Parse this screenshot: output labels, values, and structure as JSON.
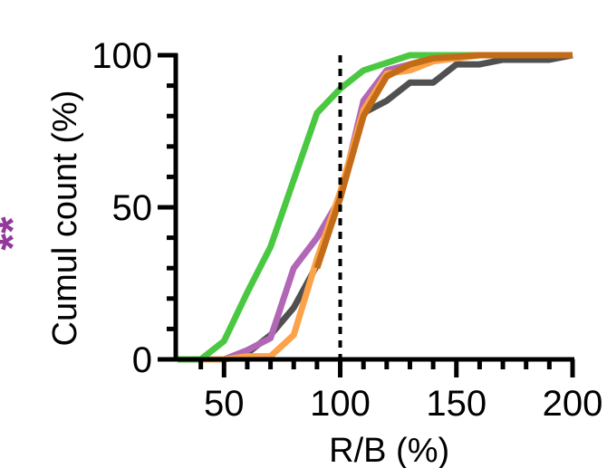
{
  "chart_data": {
    "type": "line",
    "xlabel": "R/B (%)",
    "ylabel": "Cumul count (%)",
    "xlim": [
      30,
      200
    ],
    "ylim": [
      0,
      100
    ],
    "xticks": [
      50,
      100,
      150,
      200
    ],
    "xtick_labels": [
      "50",
      "100",
      "150",
      "200"
    ],
    "yticks": [
      0,
      50,
      100
    ],
    "ytick_labels": [
      "0",
      "50",
      "100"
    ],
    "reference_line_x": 100,
    "significance": {
      "text": "**",
      "color": "#93399a"
    },
    "series": [
      {
        "color": "#505050",
        "x": [
          30,
          40,
          50,
          60,
          70,
          80,
          90,
          100,
          110,
          120,
          130,
          140,
          150,
          160,
          170,
          180,
          190,
          200
        ],
        "y": [
          0,
          0,
          0,
          2,
          8,
          17,
          31,
          53,
          81,
          85,
          91,
          91,
          97,
          97,
          98.5,
          98.5,
          98.5,
          100
        ]
      },
      {
        "color": "#b167b5",
        "x": [
          30,
          40,
          50,
          60,
          70,
          80,
          90,
          100,
          110,
          120,
          130,
          140,
          150,
          160,
          170,
          180,
          190,
          200
        ],
        "y": [
          0,
          0,
          0,
          3,
          7,
          30,
          40,
          53,
          85,
          95,
          97,
          99,
          100,
          100,
          100,
          100,
          100,
          100
        ]
      },
      {
        "color": "#fca248",
        "x": [
          30,
          40,
          50,
          60,
          70,
          80,
          90,
          100,
          110,
          120,
          130,
          140,
          150,
          160,
          170,
          180,
          190,
          200
        ],
        "y": [
          0,
          0,
          0,
          1,
          1,
          8,
          33,
          55,
          82,
          94,
          95,
          98,
          99,
          100,
          100,
          100,
          100,
          100
        ]
      },
      {
        "color": "#4bc842",
        "x": [
          30,
          40,
          50,
          60,
          70,
          80,
          90,
          100,
          110,
          120,
          130,
          140,
          150,
          160,
          170,
          180,
          190,
          200
        ],
        "y": [
          0,
          0,
          6,
          22,
          37,
          59,
          81,
          89,
          95,
          97.5,
          100,
          100,
          100,
          100,
          100,
          100,
          100,
          100
        ]
      },
      {
        "color": "#c46b17",
        "x": [
          90,
          100,
          110,
          120,
          130,
          140,
          150,
          160,
          170,
          180,
          190,
          200
        ],
        "y": [
          30,
          53,
          80,
          93,
          97,
          99,
          99.5,
          100,
          100,
          100,
          100,
          100
        ]
      }
    ]
  }
}
